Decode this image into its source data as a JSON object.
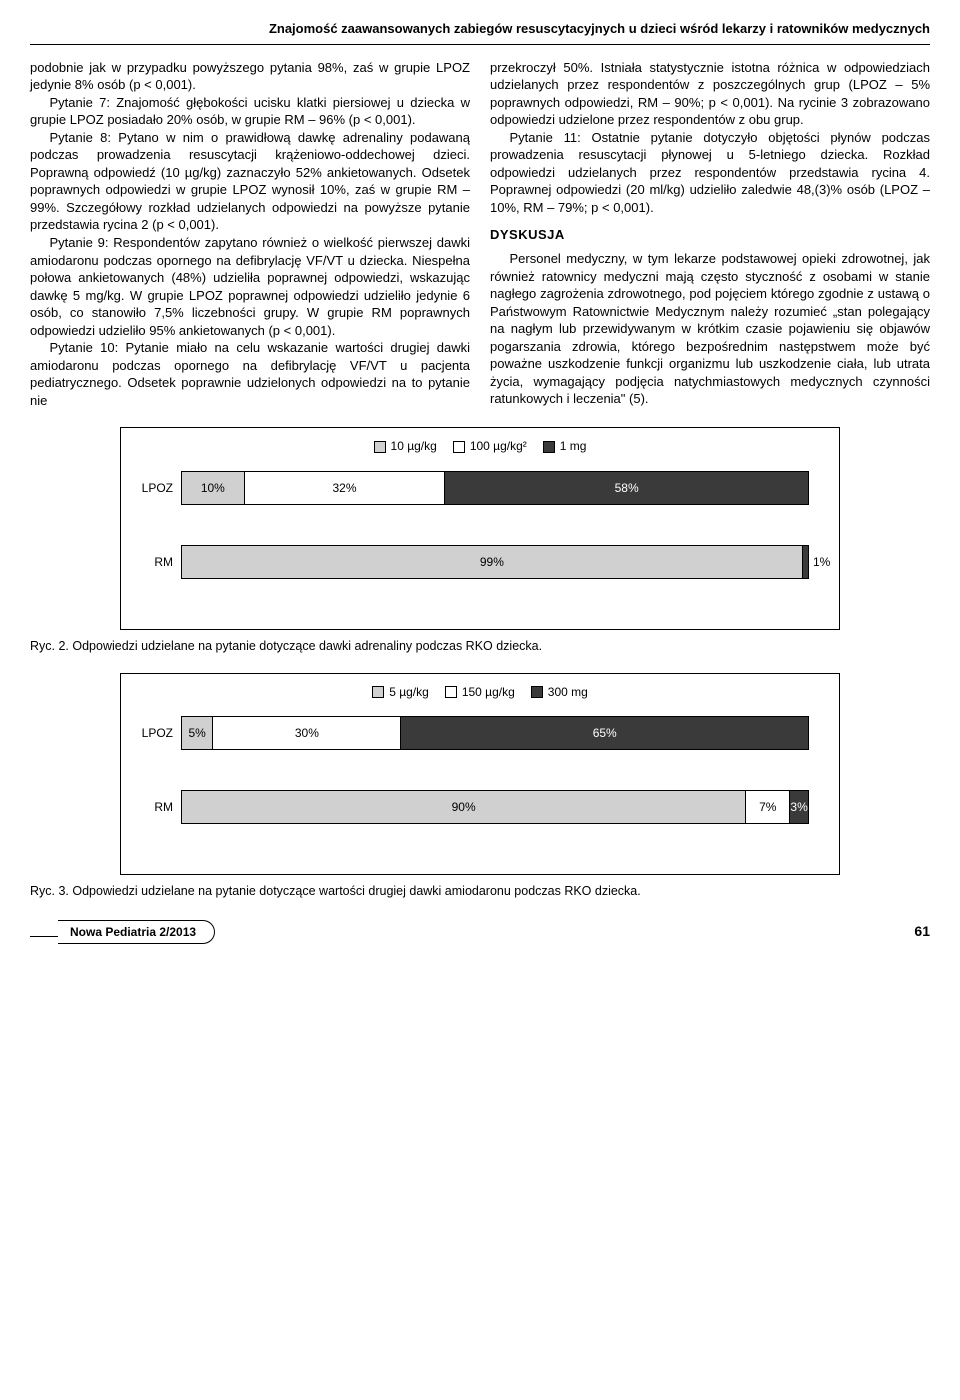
{
  "header": {
    "running_title": "Znajomość zaawansowanych zabiegów resuscytacyjnych u dzieci wśród lekarzy i ratowników medycznych"
  },
  "colors": {
    "light": "#d0d0d0",
    "white": "#ffffff",
    "dark": "#3a3a3a",
    "border": "#000000",
    "text_on_dark": "#ffffff"
  },
  "left_column": {
    "p1": "podobnie jak w przypadku powyższego pytania 98%, zaś w grupie LPOZ jedynie 8% osób (p < 0,001).",
    "p2": "Pytanie 7: Znajomość głębokości ucisku klatki piersiowej u dziecka w grupie LPOZ posiadało 20% osób, w grupie RM – 96% (p < 0,001).",
    "p3": "Pytanie 8: Pytano w nim o prawidłową dawkę adrenaliny podawaną podczas prowadzenia resuscytacji krążeniowo-oddechowej dzieci. Poprawną odpowiedź (10 µg/kg) zaznaczyło 52% ankietowanych. Odsetek poprawnych odpowiedzi w grupie LPOZ wynosił 10%, zaś w grupie RM – 99%. Szczegółowy rozkład udzielanych odpowiedzi na powyższe pytanie przedstawia rycina 2 (p < 0,001).",
    "p4": "Pytanie 9: Respondentów zapytano również o wielkość pierwszej dawki amiodaronu podczas opornego na defibrylację VF/VT u dziecka. Niespełna połowa ankietowanych (48%) udzieliła poprawnej odpowiedzi, wskazując dawkę 5 mg/kg. W grupie LPOZ poprawnej odpowiedzi udzieliło jedynie 6 osób, co stanowiło 7,5% liczebności grupy. W grupie RM poprawnych odpowiedzi udzieliło 95% ankietowanych (p < 0,001).",
    "p5": "Pytanie 10: Pytanie miało na celu wskazanie wartości drugiej dawki amiodaronu podczas opornego na defibrylację VF/VT u pacjenta pediatrycznego. Odsetek poprawnie udzielonych odpowiedzi na to pytanie nie"
  },
  "right_column": {
    "p1": "przekroczył 50%. Istniała statystycznie istotna różnica w odpowiedziach udzielanych przez respondentów z poszczególnych grup (LPOZ – 5% poprawnych odpowiedzi, RM – 90%; p < 0,001). Na rycinie 3 zobrazowano odpowiedzi udzielone przez respondentów z obu grup.",
    "p2": "Pytanie 11: Ostatnie pytanie dotyczyło objętości płynów podczas prowadzenia resuscytacji płynowej u 5-letniego dziecka. Rozkład odpowiedzi udzielanych przez respondentów przedstawia rycina 4. Poprawnej odpowiedzi (20 ml/kg) udzieliło zaledwie 48,(3)% osób (LPOZ – 10%, RM – 79%; p < 0,001).",
    "heading": "DYSKUSJA",
    "p3": "Personel medyczny, w tym lekarze podstawowej opieki zdrowotnej, jak również ratownicy medyczni mają często styczność z osobami w stanie nagłego zagrożenia zdrowotnego, pod pojęciem którego zgodnie z ustawą o Państwowym Ratownictwie Medycznym należy rozumieć „stan polegający na nagłym lub przewidywanym w krótkim czasie pojawieniu się objawów pogarszania zdrowia, którego bezpośrednim następstwem może być poważne uszkodzenie funkcji organizmu lub uszkodzenie ciała, lub utrata życia, wymagający podjęcia natychmiastowych medycznych czynności ratunkowych i leczenia\" (5)."
  },
  "chart1": {
    "legend": [
      {
        "label": "10 µg/kg",
        "color": "#d0d0d0"
      },
      {
        "label": "100 µg/kg²",
        "color": "#ffffff"
      },
      {
        "label": "1 mg",
        "color": "#3a3a3a"
      }
    ],
    "rows": [
      {
        "name": "LPOZ",
        "segments": [
          {
            "value": 10,
            "label": "10%",
            "color": "#d0d0d0",
            "text": "#000000"
          },
          {
            "value": 32,
            "label": "32%",
            "color": "#ffffff",
            "text": "#000000"
          },
          {
            "value": 58,
            "label": "58%",
            "color": "#3a3a3a",
            "text": "#ffffff"
          }
        ]
      },
      {
        "name": "RM",
        "segments": [
          {
            "value": 99,
            "label": "99%",
            "color": "#d0d0d0",
            "text": "#000000"
          },
          {
            "value": 1,
            "label": "1%",
            "color": "#3a3a3a",
            "text": "#000000",
            "outside": true
          }
        ]
      }
    ],
    "caption": "Ryc. 2. Odpowiedzi udzielane na pytanie dotyczące dawki adrenaliny podczas RKO dziecka."
  },
  "chart2": {
    "legend": [
      {
        "label": "5 µg/kg",
        "color": "#d0d0d0"
      },
      {
        "label": "150 µg/kg",
        "color": "#ffffff"
      },
      {
        "label": "300 mg",
        "color": "#3a3a3a"
      }
    ],
    "rows": [
      {
        "name": "LPOZ",
        "segments": [
          {
            "value": 5,
            "label": "5%",
            "color": "#d0d0d0",
            "text": "#000000"
          },
          {
            "value": 30,
            "label": "30%",
            "color": "#ffffff",
            "text": "#000000"
          },
          {
            "value": 65,
            "label": "65%",
            "color": "#3a3a3a",
            "text": "#ffffff"
          }
        ]
      },
      {
        "name": "RM",
        "segments": [
          {
            "value": 90,
            "label": "90%",
            "color": "#d0d0d0",
            "text": "#000000"
          },
          {
            "value": 7,
            "label": "7%",
            "color": "#ffffff",
            "text": "#000000"
          },
          {
            "value": 3,
            "label": "3%",
            "color": "#3a3a3a",
            "text": "#ffffff"
          }
        ]
      }
    ],
    "caption": "Ryc. 3. Odpowiedzi udzielane na pytanie dotyczące wartości drugiej dawki amiodaronu podczas RKO dziecka."
  },
  "footer": {
    "journal": "Nowa Pediatria 2/2013",
    "page": "61"
  }
}
